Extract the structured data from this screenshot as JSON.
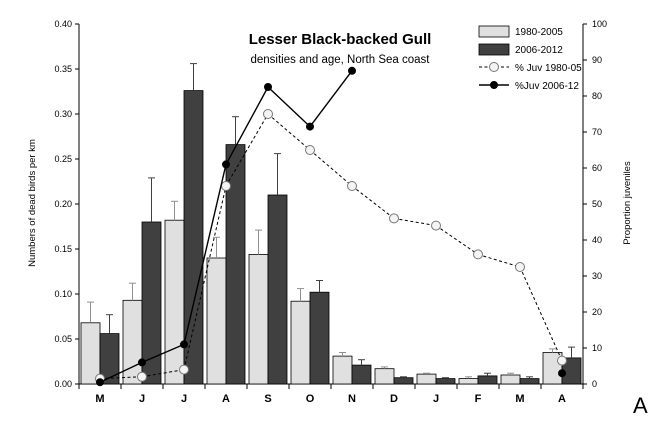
{
  "chart_data": {
    "type": "bar",
    "title": "Lesser Black-backed Gull",
    "subtitle": "densities and age, North Sea coast",
    "panel_label": "A",
    "xlabel": "",
    "ylabel": "Numbers of dead birds per km",
    "y2label": "Proportion juveniles",
    "ylim": [
      0,
      0.4
    ],
    "y_ticks": [
      "0.00",
      "0.05",
      "0.10",
      "0.15",
      "0.20",
      "0.25",
      "0.30",
      "0.35",
      "0.40"
    ],
    "y2lim": [
      0,
      100
    ],
    "y2_ticks": [
      "0",
      "10",
      "20",
      "30",
      "40",
      "50",
      "60",
      "70",
      "80",
      "90",
      "100"
    ],
    "categories": [
      "M",
      "J",
      "J",
      "A",
      "S",
      "O",
      "N",
      "D",
      "J",
      "F",
      "M",
      "A"
    ],
    "legend_position": "top-right",
    "series": [
      {
        "name": "1980-2005",
        "kind": "bar",
        "color": "#e0e0e0",
        "values": [
          0.068,
          0.093,
          0.182,
          0.14,
          0.144,
          0.092,
          0.031,
          0.017,
          0.011,
          0.006,
          0.01,
          0.035
        ],
        "error_upper": [
          0.091,
          0.112,
          0.203,
          0.163,
          0.171,
          0.106,
          0.035,
          0.019,
          0.012,
          0.008,
          0.012,
          0.039
        ]
      },
      {
        "name": "2006-2012",
        "kind": "bar",
        "color": "#404040",
        "values": [
          0.056,
          0.18,
          0.326,
          0.266,
          0.21,
          0.102,
          0.021,
          0.007,
          0.006,
          0.009,
          0.006,
          0.029
        ],
        "error_upper": [
          0.077,
          0.229,
          0.356,
          0.297,
          0.256,
          0.115,
          0.027,
          0.008,
          0.007,
          0.012,
          0.008,
          0.041
        ]
      },
      {
        "name": "% Juv 1980-05",
        "kind": "line",
        "axis": "right",
        "style": "dashed",
        "marker": "open-circle",
        "color": "#000000",
        "values": [
          1.5,
          2,
          4,
          55,
          75,
          65,
          55,
          46,
          44,
          36,
          32.5,
          6.5
        ]
      },
      {
        "name": "%Juv 2006-12",
        "kind": "line",
        "axis": "right",
        "style": "solid",
        "marker": "filled-circle",
        "color": "#000000",
        "values": [
          0.5,
          6,
          11,
          61,
          82.5,
          71.5,
          87,
          null,
          null,
          null,
          null,
          3
        ]
      }
    ]
  }
}
